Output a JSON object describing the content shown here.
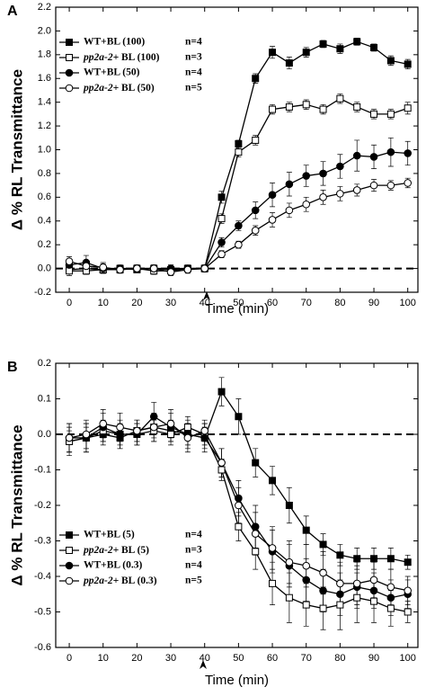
{
  "chart_data": [
    {
      "type": "line",
      "panel": "A",
      "ylabel": "Δ % RL Transmittance",
      "xlabel": "Time (min)",
      "x": [
        0,
        5,
        10,
        15,
        20,
        25,
        30,
        35,
        40,
        45,
        50,
        55,
        60,
        65,
        70,
        75,
        80,
        85,
        90,
        95,
        100
      ],
      "xlim": [
        -4,
        103
      ],
      "xticks": [
        0,
        10,
        20,
        30,
        40,
        50,
        60,
        70,
        80,
        90,
        100
      ],
      "ylim": [
        -0.2,
        2.2
      ],
      "yticks": [
        -0.2,
        {
          "value": 0,
          "label": "0.0"
        },
        0.2,
        0.4,
        0.6,
        0.8,
        {
          "value": 1,
          "label": "1.0"
        },
        1.2,
        1.4,
        1.6,
        1.8,
        {
          "value": 2,
          "label": "2.0"
        },
        2.2
      ],
      "series": [
        {
          "name": "WT+BL (100)",
          "n": "n=4",
          "color": "#000000",
          "marker": "square",
          "filled": true,
          "values": [
            -0.01,
            0.0,
            -0.01,
            0.0,
            -0.01,
            0.0,
            -0.01,
            0.0,
            0.0,
            0.6,
            1.05,
            1.6,
            1.82,
            1.73,
            1.82,
            1.89,
            1.85,
            1.91,
            1.86,
            1.75,
            1.72
          ],
          "errors": [
            0.03,
            0.02,
            0.03,
            0.02,
            0.02,
            0.02,
            0.02,
            0.02,
            0.02,
            0.05,
            0.03,
            0.04,
            0.05,
            0.05,
            0.04,
            0.03,
            0.04,
            0.03,
            0.03,
            0.04,
            0.04
          ]
        },
        {
          "name": "pp2a-2+ BL (100)",
          "n": "n=3",
          "color": "#000000",
          "marker": "square",
          "filled": false,
          "values": [
            -0.02,
            -0.02,
            -0.01,
            -0.01,
            0.0,
            -0.02,
            -0.02,
            0.0,
            0.0,
            0.42,
            0.98,
            1.08,
            1.34,
            1.36,
            1.38,
            1.34,
            1.43,
            1.36,
            1.3,
            1.3,
            1.35
          ],
          "errors": [
            0.04,
            0.03,
            0.03,
            0.02,
            0.02,
            0.03,
            0.03,
            0.02,
            0.02,
            0.04,
            0.04,
            0.04,
            0.04,
            0.04,
            0.04,
            0.04,
            0.04,
            0.04,
            0.04,
            0.04,
            0.05
          ]
        },
        {
          "name": "WT+BL (50)",
          "n": "n=4",
          "color": "#000000",
          "marker": "circle",
          "filled": true,
          "values": [
            0.03,
            0.05,
            0.0,
            0.0,
            0.0,
            0.0,
            0.0,
            0.0,
            0.0,
            0.22,
            0.36,
            0.49,
            0.62,
            0.71,
            0.78,
            0.8,
            0.86,
            0.95,
            0.94,
            0.98,
            0.97
          ],
          "errors": [
            0.04,
            0.06,
            0.04,
            0.03,
            0.03,
            0.03,
            0.03,
            0.03,
            0.03,
            0.04,
            0.04,
            0.07,
            0.1,
            0.1,
            0.09,
            0.1,
            0.1,
            0.13,
            0.1,
            0.12,
            0.1
          ]
        },
        {
          "name": "pp2a-2+ BL (50)",
          "n": "n=5",
          "color": "#000000",
          "marker": "circle",
          "filled": false,
          "values": [
            0.06,
            0.02,
            0.01,
            -0.01,
            0.0,
            0.0,
            -0.03,
            -0.01,
            0.0,
            0.12,
            0.2,
            0.32,
            0.41,
            0.49,
            0.54,
            0.6,
            0.63,
            0.66,
            0.7,
            0.7,
            0.72
          ],
          "errors": [
            0.04,
            0.04,
            0.04,
            0.03,
            0.03,
            0.03,
            0.03,
            0.03,
            0.03,
            0.03,
            0.03,
            0.04,
            0.06,
            0.06,
            0.06,
            0.06,
            0.06,
            0.05,
            0.05,
            0.04,
            0.04
          ]
        }
      ]
    },
    {
      "type": "line",
      "panel": "B",
      "ylabel": "Δ % RL Transmittance",
      "xlabel": "Time (min)",
      "x": [
        0,
        5,
        10,
        15,
        20,
        25,
        30,
        35,
        40,
        45,
        50,
        55,
        60,
        65,
        70,
        75,
        80,
        85,
        90,
        95,
        100
      ],
      "xlim": [
        -4,
        103
      ],
      "xticks": [
        0,
        10,
        20,
        30,
        40,
        50,
        60,
        70,
        80,
        90,
        100
      ],
      "ylim": [
        -0.6,
        0.2
      ],
      "yticks": [
        -0.6,
        -0.5,
        -0.4,
        -0.3,
        -0.2,
        -0.1,
        {
          "value": 0,
          "label": "0.0"
        },
        0.1,
        0.2
      ],
      "series": [
        {
          "name": "WT+BL (5)",
          "n": "n=4",
          "color": "#000000",
          "marker": "square",
          "filled": true,
          "values": [
            -0.02,
            -0.01,
            0.0,
            -0.01,
            0.01,
            0.02,
            0.01,
            0.0,
            -0.01,
            0.12,
            0.05,
            -0.08,
            -0.13,
            -0.2,
            -0.27,
            -0.31,
            -0.34,
            -0.35,
            -0.35,
            -0.35,
            -0.36
          ],
          "errors": [
            0.04,
            0.04,
            0.03,
            0.03,
            0.03,
            0.03,
            0.03,
            0.03,
            0.03,
            0.04,
            0.05,
            0.04,
            0.04,
            0.05,
            0.04,
            0.03,
            0.03,
            0.03,
            0.03,
            0.03,
            0.02
          ]
        },
        {
          "name": "pp2a-2+ BL (5)",
          "n": "n=3",
          "color": "#000000",
          "marker": "square",
          "filled": false,
          "values": [
            -0.02,
            -0.01,
            0.01,
            0.0,
            0.0,
            0.01,
            0.0,
            0.02,
            0.0,
            -0.1,
            -0.26,
            -0.33,
            -0.42,
            -0.46,
            -0.48,
            -0.49,
            -0.48,
            -0.46,
            -0.47,
            -0.49,
            -0.5
          ],
          "errors": [
            0.03,
            0.03,
            0.03,
            0.03,
            0.03,
            0.03,
            0.03,
            0.03,
            0.03,
            0.03,
            0.04,
            0.05,
            0.06,
            0.07,
            0.06,
            0.06,
            0.07,
            0.07,
            0.06,
            0.05,
            0.03
          ]
        },
        {
          "name": "WT+BL (0.3)",
          "n": "n=4",
          "color": "#000000",
          "marker": "circle",
          "filled": true,
          "values": [
            -0.01,
            -0.01,
            0.02,
            0.0,
            0.0,
            0.05,
            0.02,
            0.0,
            -0.01,
            -0.08,
            -0.18,
            -0.26,
            -0.33,
            -0.37,
            -0.41,
            -0.44,
            -0.45,
            -0.43,
            -0.44,
            -0.46,
            -0.45
          ],
          "errors": [
            0.04,
            0.04,
            0.04,
            0.04,
            0.03,
            0.04,
            0.04,
            0.04,
            0.04,
            0.04,
            0.05,
            0.06,
            0.06,
            0.06,
            0.06,
            0.06,
            0.06,
            0.06,
            0.05,
            0.05,
            0.04
          ]
        },
        {
          "name": "pp2a-2+ BL (0.3)",
          "n": "n=5",
          "color": "#000000",
          "marker": "circle",
          "filled": false,
          "values": [
            -0.01,
            0.0,
            0.03,
            0.02,
            0.01,
            0.02,
            0.03,
            -0.01,
            0.01,
            -0.08,
            -0.2,
            -0.28,
            -0.32,
            -0.36,
            -0.37,
            -0.39,
            -0.42,
            -0.42,
            -0.41,
            -0.43,
            -0.44
          ],
          "errors": [
            0.04,
            0.04,
            0.04,
            0.04,
            0.03,
            0.04,
            0.04,
            0.04,
            0.03,
            0.04,
            0.05,
            0.06,
            0.06,
            0.06,
            0.06,
            0.06,
            0.06,
            0.06,
            0.05,
            0.05,
            0.04
          ]
        }
      ]
    }
  ]
}
